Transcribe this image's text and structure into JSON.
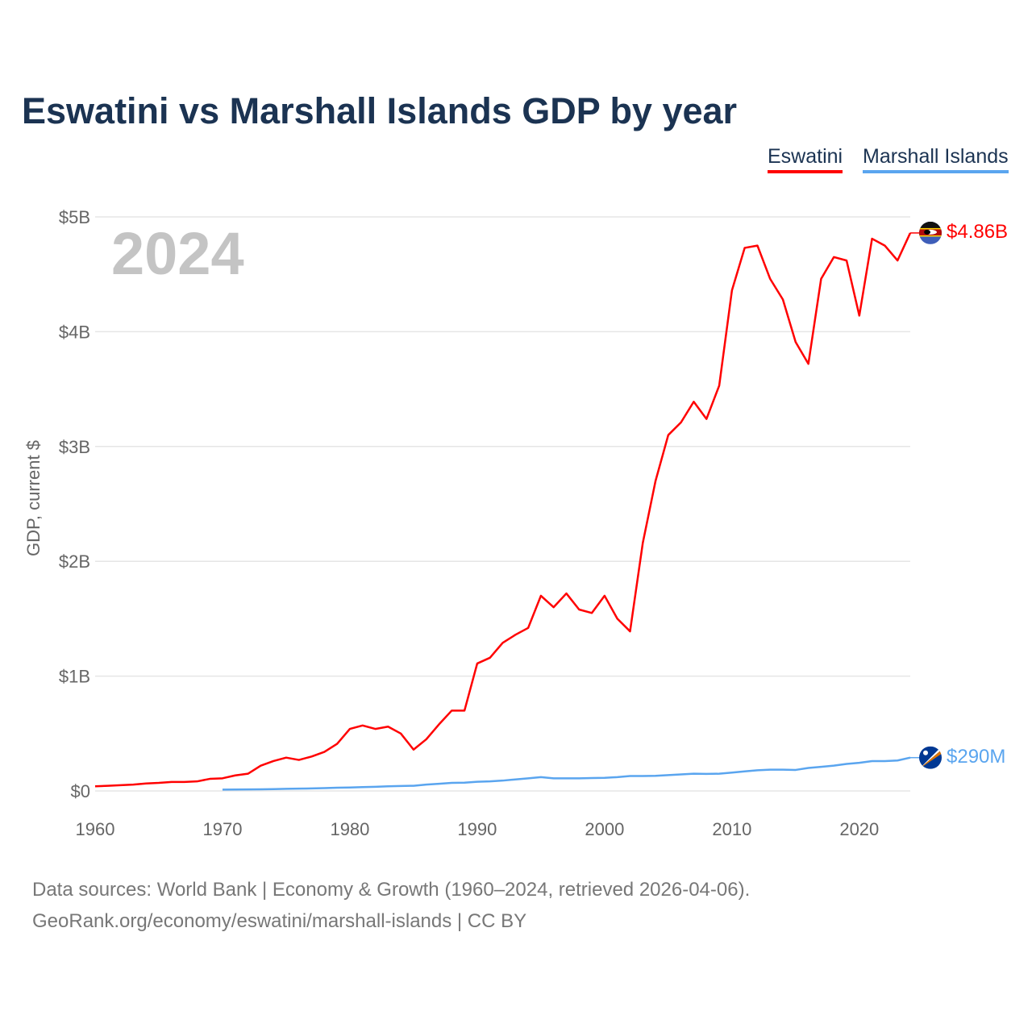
{
  "title": "Eswatini vs Marshall Islands GDP by year",
  "year_label": "2024",
  "sources": [
    "Data sources: World Bank | Economy & Growth (1960–2024, retrieved 2026-04-06).",
    "GeoRank.org/economy/eswatini/marshall-islands | CC BY"
  ],
  "chart_data": {
    "type": "line",
    "title": "Eswatini vs Marshall Islands GDP by year",
    "xlabel": "",
    "ylabel": "GDP, current $",
    "xlim": [
      1960,
      2024
    ],
    "ylim": [
      0,
      5
    ],
    "unit": "billion USD",
    "grid": true,
    "legend_placement": "top-right",
    "x_ticks": [
      1960,
      1970,
      1980,
      1990,
      2000,
      2010,
      2020
    ],
    "x_tick_labels": [
      "1960",
      "1970",
      "1980",
      "1990",
      "2000",
      "2010",
      "2020"
    ],
    "y_ticks": [
      0,
      1,
      2,
      3,
      4,
      5
    ],
    "y_tick_labels": [
      "$0",
      "$1B",
      "$2B",
      "$3B",
      "$4B",
      "$5B"
    ],
    "series": [
      {
        "name": "Eswatini",
        "color": "#ff0000",
        "start_year": 1960,
        "end_label": "$4.86B",
        "flag": "eswatini-flag",
        "values": [
          0.04,
          0.045,
          0.05,
          0.055,
          0.065,
          0.07,
          0.078,
          0.078,
          0.083,
          0.105,
          0.11,
          0.135,
          0.15,
          0.22,
          0.26,
          0.29,
          0.27,
          0.3,
          0.34,
          0.41,
          0.54,
          0.57,
          0.54,
          0.56,
          0.5,
          0.36,
          0.45,
          0.58,
          0.7,
          0.7,
          1.11,
          1.16,
          1.29,
          1.36,
          1.42,
          1.7,
          1.6,
          1.72,
          1.58,
          1.55,
          1.7,
          1.5,
          1.39,
          2.16,
          2.7,
          3.1,
          3.21,
          3.39,
          3.24,
          3.53,
          4.36,
          4.73,
          4.75,
          4.46,
          4.28,
          3.91,
          3.72,
          4.46,
          4.65,
          4.62,
          4.14,
          4.81,
          4.75,
          4.62,
          4.86
        ]
      },
      {
        "name": "Marshall Islands",
        "color": "#5aa5ef",
        "start_year": 1970,
        "end_label": "$290M",
        "flag": "marshall-islands-flag",
        "values": [
          0.011,
          0.012,
          0.013,
          0.014,
          0.016,
          0.018,
          0.02,
          0.022,
          0.025,
          0.028,
          0.03,
          0.033,
          0.036,
          0.04,
          0.043,
          0.045,
          0.055,
          0.062,
          0.07,
          0.072,
          0.08,
          0.083,
          0.09,
          0.1,
          0.11,
          0.12,
          0.11,
          0.11,
          0.11,
          0.112,
          0.114,
          0.12,
          0.13,
          0.13,
          0.132,
          0.138,
          0.144,
          0.15,
          0.148,
          0.15,
          0.16,
          0.17,
          0.18,
          0.185,
          0.185,
          0.183,
          0.2,
          0.21,
          0.22,
          0.235,
          0.245,
          0.26,
          0.26,
          0.265,
          0.29
        ]
      }
    ]
  }
}
